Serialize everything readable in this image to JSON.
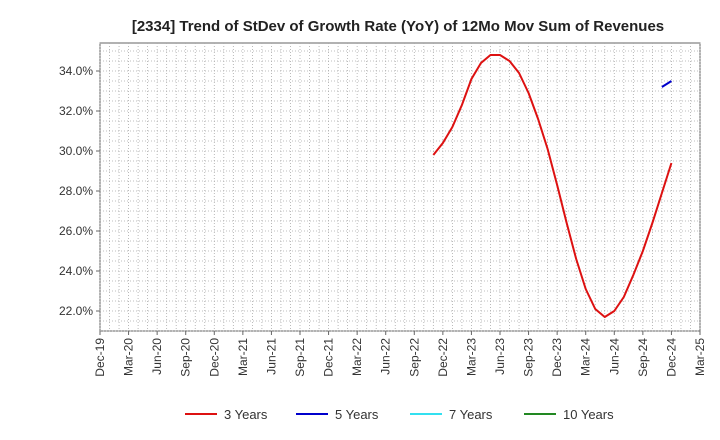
{
  "chart_data": {
    "type": "line",
    "title": "[2334]  Trend of StDev of Growth Rate (YoY) of 12Mo Mov Sum of Revenues",
    "xlabel": "",
    "ylabel": "",
    "x_ticks": [
      "Dec-19",
      "Mar-20",
      "Jun-20",
      "Sep-20",
      "Dec-20",
      "Mar-21",
      "Jun-21",
      "Sep-21",
      "Dec-21",
      "Mar-22",
      "Jun-22",
      "Sep-22",
      "Dec-22",
      "Mar-23",
      "Jun-23",
      "Sep-23",
      "Dec-23",
      "Mar-24",
      "Jun-24",
      "Sep-24",
      "Dec-24",
      "Mar-25"
    ],
    "y_ticks": [
      "22.0%",
      "24.0%",
      "26.0%",
      "28.0%",
      "30.0%",
      "32.0%",
      "34.0%"
    ],
    "ylim": [
      21.0,
      35.4
    ],
    "grid": true,
    "legend_position": "bottom",
    "series": [
      {
        "name": "3 Years",
        "color": "#dd1111",
        "points": [
          [
            "Nov-22",
            29.8
          ],
          [
            "Dec-22",
            30.4
          ],
          [
            "Jan-23",
            31.2
          ],
          [
            "Feb-23",
            32.3
          ],
          [
            "Mar-23",
            33.6
          ],
          [
            "Apr-23",
            34.4
          ],
          [
            "May-23",
            34.8
          ],
          [
            "Jun-23",
            34.8
          ],
          [
            "Jul-23",
            34.5
          ],
          [
            "Aug-23",
            33.9
          ],
          [
            "Sep-23",
            32.9
          ],
          [
            "Oct-23",
            31.6
          ],
          [
            "Nov-23",
            30.1
          ],
          [
            "Dec-23",
            28.3
          ],
          [
            "Jan-24",
            26.4
          ],
          [
            "Feb-24",
            24.6
          ],
          [
            "Mar-24",
            23.1
          ],
          [
            "Apr-24",
            22.1
          ],
          [
            "May-24",
            21.7
          ],
          [
            "Jun-24",
            22.0
          ],
          [
            "Jul-24",
            22.7
          ],
          [
            "Aug-24",
            23.8
          ],
          [
            "Sep-24",
            25.0
          ],
          [
            "Oct-24",
            26.4
          ],
          [
            "Nov-24",
            27.9
          ],
          [
            "Dec-24",
            29.4
          ]
        ]
      },
      {
        "name": "5 Years",
        "color": "#0000cc",
        "points": [
          [
            "Nov-24",
            33.2
          ],
          [
            "Dec-24",
            33.5
          ]
        ]
      },
      {
        "name": "7 Years",
        "color": "#33e0f0",
        "points": []
      },
      {
        "name": "10 Years",
        "color": "#228822",
        "points": []
      }
    ]
  }
}
